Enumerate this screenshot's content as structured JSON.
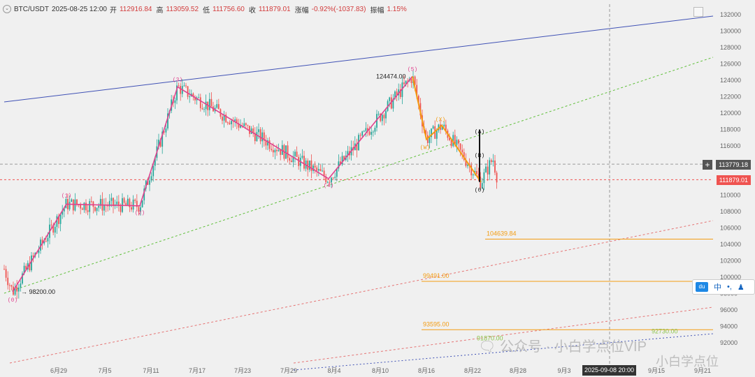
{
  "header": {
    "symbol": "BTC/USDT",
    "datetime": "2025-08-25 12:00",
    "open_label": "开",
    "open": "112916.84",
    "high_label": "高",
    "high": "113059.52",
    "low_label": "低",
    "low": "111756.60",
    "close_label": "收",
    "close": "111879.01",
    "change_label": "涨幅",
    "change": "-0.92%(-1037.83)",
    "amp_label": "振幅",
    "amp": "1.15%"
  },
  "price_tags": {
    "crosshair": "113779.18",
    "last": "111879.01"
  },
  "cursor_date": "2025-09-08 20:00",
  "toolbar": {
    "logo": "du",
    "lang": "中",
    "dots": "•,",
    "user": "♟"
  },
  "watermark": {
    "left": "🗨 公众号 · 小白学点位VIP",
    "right": "小白学点位"
  },
  "colors": {
    "up": "#26a69a",
    "down": "#ef5350",
    "wave": "#e0428e",
    "corr": "#f39c12",
    "channel": "#3f51b5"
  },
  "chart_data": {
    "type": "candlestick",
    "y_ticks": [
      92000,
      94000,
      96000,
      98000,
      100000,
      102000,
      104000,
      106000,
      108000,
      110000,
      112000,
      114000,
      116000,
      118000,
      120000,
      122000,
      124000,
      126000,
      128000,
      130000,
      132000
    ],
    "x_tick_labels": [
      "6月29",
      "7月5",
      "7月11",
      "7月17",
      "7月23",
      "7月29",
      "8月4",
      "8月10",
      "8月16",
      "8月22",
      "8月28",
      "9月3",
      "9月9",
      "9月15",
      "9月21"
    ],
    "last_close": 111879.01,
    "crosshair_price": 113779.18,
    "wave_points": [
      {
        "label": "(0)",
        "value": 98200.0
      },
      {
        "label": "(1)",
        "value": 108900
      },
      {
        "label": "(2)",
        "value": 108700
      },
      {
        "label": "(3)",
        "value": 123200
      },
      {
        "label": "(4)",
        "value": 112000
      },
      {
        "label": "(5)",
        "value": 124474.0
      }
    ],
    "correction_points": [
      {
        "label": "(W)",
        "value": 116800
      },
      {
        "label": "(X)",
        "value": 118500
      },
      {
        "label": "(A)",
        "value": 117200
      },
      {
        "label": "(B)",
        "value": 115000
      },
      {
        "label": "(0)",
        "value": 111600
      }
    ],
    "price_annotations": [
      "98200.00",
      "124474.00"
    ],
    "levels": [
      {
        "label": "104639.84",
        "value": 104639.84,
        "color": "#f39c12"
      },
      {
        "label": "99491.00",
        "value": 99491.0,
        "color": "#f39c12"
      },
      {
        "label": "93595.00",
        "value": 93595.0,
        "color": "#f39c12"
      },
      {
        "label": "92730.00",
        "value": 92730.0,
        "color": "#8bc34a"
      },
      {
        "label": "91870.00",
        "value": 91870.0,
        "color": "#8bc34a"
      }
    ]
  }
}
